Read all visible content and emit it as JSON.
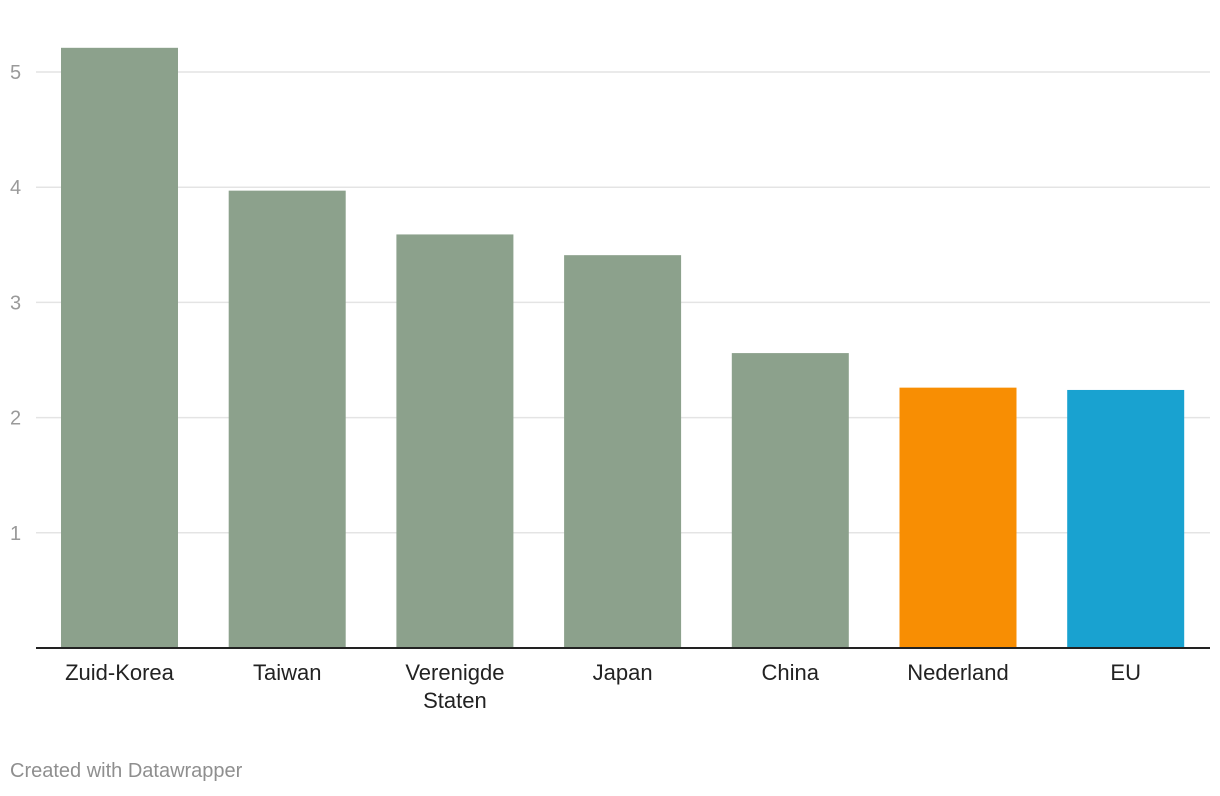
{
  "chart_data": {
    "type": "bar",
    "categories": [
      "Zuid-Korea",
      "Taiwan",
      "Verenigde Staten",
      "Japan",
      "China",
      "Nederland",
      "EU"
    ],
    "category_lines": [
      [
        "Zuid-Korea"
      ],
      [
        "Taiwan"
      ],
      [
        "Verenigde",
        "Staten"
      ],
      [
        "Japan"
      ],
      [
        "China"
      ],
      [
        "Nederland"
      ],
      [
        "EU"
      ]
    ],
    "values": [
      5.21,
      3.97,
      3.59,
      3.41,
      2.56,
      2.26,
      2.24
    ],
    "colors": [
      "#8ca18c",
      "#8ca18c",
      "#8ca18c",
      "#8ca18c",
      "#8ca18c",
      "#f88e03",
      "#19a2d0"
    ],
    "yticks": [
      "1",
      "2",
      "3",
      "4",
      "5"
    ],
    "ylim": [
      0,
      5.21
    ],
    "grid": true,
    "title": "",
    "xlabel": "",
    "ylabel": ""
  },
  "footer": {
    "credit": "Created with Datawrapper"
  }
}
